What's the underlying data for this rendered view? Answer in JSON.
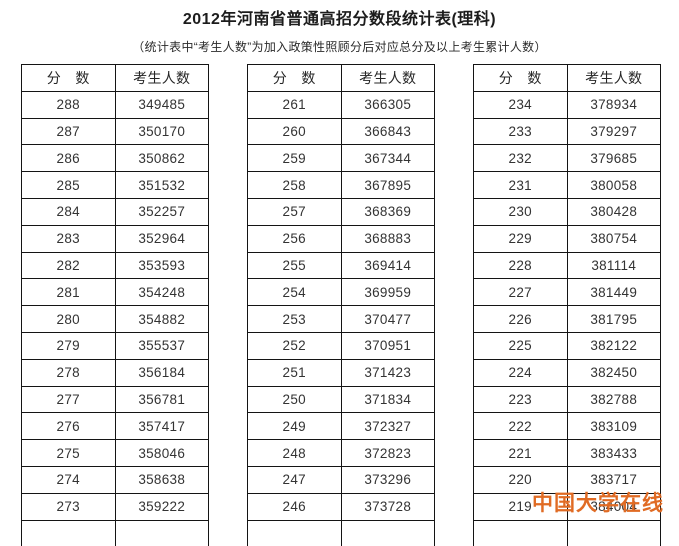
{
  "page": {
    "title": "2012年河南省普通高招分数段统计表(理科)",
    "subtitle": "（统计表中“考生人数”为加入政策性照顾分后对应总分及以上考生累计人数）"
  },
  "table_headers": [
    "分　数",
    "考生人数"
  ],
  "tables": [
    {
      "position": "left",
      "rows": [
        [
          "288",
          "349485"
        ],
        [
          "287",
          "350170"
        ],
        [
          "286",
          "350862"
        ],
        [
          "285",
          "351532"
        ],
        [
          "284",
          "352257"
        ],
        [
          "283",
          "352964"
        ],
        [
          "282",
          "353593"
        ],
        [
          "281",
          "354248"
        ],
        [
          "280",
          "354882"
        ],
        [
          "279",
          "355537"
        ],
        [
          "278",
          "356184"
        ],
        [
          "277",
          "356781"
        ],
        [
          "276",
          "357417"
        ],
        [
          "275",
          "358046"
        ],
        [
          "274",
          "358638"
        ],
        [
          "273",
          "359222"
        ]
      ]
    },
    {
      "position": "middle",
      "rows": [
        [
          "261",
          "366305"
        ],
        [
          "260",
          "366843"
        ],
        [
          "259",
          "367344"
        ],
        [
          "258",
          "367895"
        ],
        [
          "257",
          "368369"
        ],
        [
          "256",
          "368883"
        ],
        [
          "255",
          "369414"
        ],
        [
          "254",
          "369959"
        ],
        [
          "253",
          "370477"
        ],
        [
          "252",
          "370951"
        ],
        [
          "251",
          "371423"
        ],
        [
          "250",
          "371834"
        ],
        [
          "249",
          "372327"
        ],
        [
          "248",
          "372823"
        ],
        [
          "247",
          "373296"
        ],
        [
          "246",
          "373728"
        ]
      ]
    },
    {
      "position": "right",
      "rows": [
        [
          "234",
          "378934"
        ],
        [
          "233",
          "379297"
        ],
        [
          "232",
          "379685"
        ],
        [
          "231",
          "380058"
        ],
        [
          "230",
          "380428"
        ],
        [
          "229",
          "380754"
        ],
        [
          "228",
          "381114"
        ],
        [
          "227",
          "381449"
        ],
        [
          "226",
          "381795"
        ],
        [
          "225",
          "382122"
        ],
        [
          "224",
          "382450"
        ],
        [
          "223",
          "382788"
        ],
        [
          "222",
          "383109"
        ],
        [
          "221",
          "383433"
        ],
        [
          "220",
          "383717"
        ],
        [
          "219",
          "384004"
        ]
      ]
    }
  ],
  "watermark": {
    "text": "中国大学在线",
    "color": "#e06b24"
  }
}
